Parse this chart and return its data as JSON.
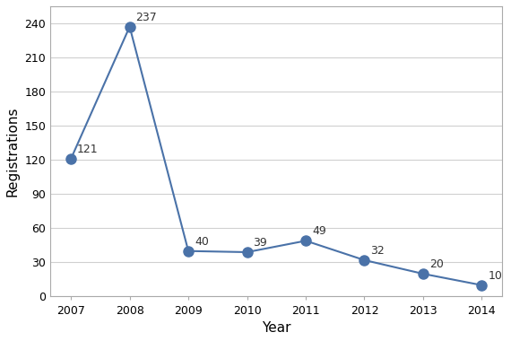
{
  "years": [
    2007,
    2008,
    2009,
    2010,
    2011,
    2012,
    2013,
    2014
  ],
  "values": [
    121,
    237,
    40,
    39,
    49,
    32,
    20,
    10
  ],
  "line_color": "#4a72a8",
  "marker_color": "#4a72a8",
  "xlabel": "Year",
  "ylabel": "Registrations",
  "ylim": [
    0,
    255
  ],
  "yticks": [
    0,
    30,
    60,
    90,
    120,
    150,
    180,
    210,
    240
  ],
  "grid_color": "#d0d0d0",
  "background_color": "#ffffff",
  "border_color": "#aaaaaa",
  "label_fontsize": 9,
  "axis_label_fontsize": 11,
  "marker_size": 8,
  "line_width": 1.5
}
